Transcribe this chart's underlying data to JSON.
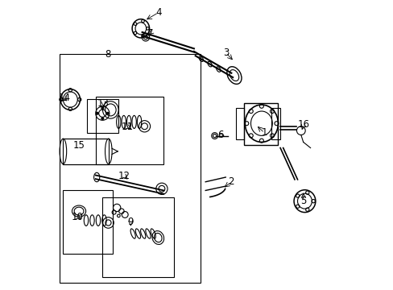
{
  "bg_color": "#ffffff",
  "line_color": "#000000",
  "fig_width": 4.89,
  "fig_height": 3.6,
  "dpi": 100,
  "label_fontsize": 8.5,
  "component_color": "#555555",
  "label_positions": {
    "1": [
      0.735,
      0.458,
      0.705,
      0.43
    ],
    "2": [
      0.62,
      0.628,
      0.59,
      0.652
    ],
    "3": [
      0.601,
      0.18,
      0.63,
      0.21
    ],
    "4": [
      0.366,
      0.04,
      0.318,
      0.068
    ],
    "5": [
      0.871,
      0.695,
      0.87,
      0.658
    ],
    "6": [
      0.582,
      0.466,
      0.596,
      0.468
    ],
    "7": [
      0.337,
      0.112,
      0.325,
      0.122
    ],
    "8": [
      0.19,
      0.185,
      0.19,
      0.185
    ],
    "9": [
      0.27,
      0.768,
      0.27,
      0.79
    ],
    "10": [
      0.085,
      0.75,
      0.105,
      0.762
    ],
    "11": [
      0.259,
      0.437,
      0.28,
      0.448
    ],
    "12": [
      0.248,
      0.608,
      0.265,
      0.625
    ],
    "13": [
      0.175,
      0.357,
      0.175,
      0.375
    ],
    "14": [
      0.04,
      0.335,
      0.048,
      0.348
    ],
    "15": [
      0.09,
      0.5,
      0.09,
      0.5
    ],
    "16": [
      0.872,
      0.428,
      0.862,
      0.455
    ]
  }
}
